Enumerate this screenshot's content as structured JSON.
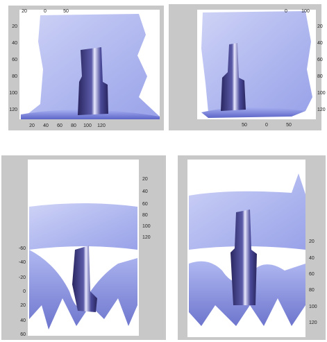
{
  "panels": [
    {
      "top_ticks": [
        "20",
        "0",
        "50"
      ],
      "left_ticks": [
        "20",
        "40",
        "60",
        "80",
        "100",
        "120"
      ],
      "bottom_ticks": [
        "20",
        "40",
        "60",
        "80",
        "100",
        "120"
      ]
    },
    {
      "top_ticks": [
        "0",
        "100"
      ],
      "right_ticks": [
        "20",
        "40",
        "60",
        "80",
        "100",
        "120"
      ],
      "bottom_ticks": [
        "50",
        "0",
        "50"
      ]
    },
    {
      "right_ticks": [
        "20",
        "40",
        "60",
        "80",
        "100",
        "120"
      ],
      "left_ticks": [
        "-60",
        "-40",
        "-20",
        "0",
        "20",
        "40",
        "60"
      ]
    },
    {
      "right_ticks": [
        "20",
        "40",
        "60",
        "80",
        "100",
        "120"
      ]
    }
  ]
}
